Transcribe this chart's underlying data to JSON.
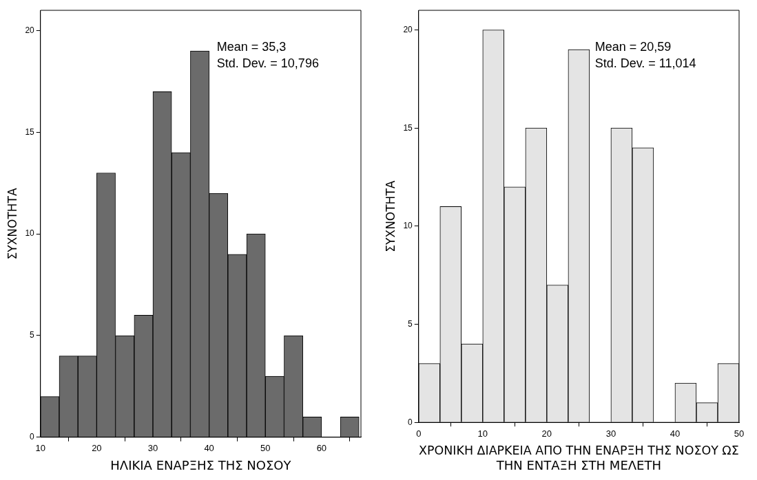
{
  "chart_data": [
    {
      "type": "histogram",
      "xlabel": "ΗΛΙΚΙΑ ΕΝΑΡΞΗΣ ΤΗΣ ΝΟΣΟΥ",
      "ylabel": "ΣΥΧΝΟΤΗΤΑ",
      "bins": [
        10,
        13.33,
        16.67,
        20,
        23.33,
        26.67,
        30,
        33.33,
        36.67,
        40,
        43.33,
        46.67,
        50,
        53.33,
        56.67,
        60,
        63.33,
        66.67
      ],
      "values": [
        2,
        4,
        4,
        13,
        5,
        6,
        17,
        14,
        19,
        12,
        9,
        10,
        3,
        5,
        1,
        0,
        1
      ],
      "color": "#6b6b6b",
      "xlim": [
        10,
        67
      ],
      "xticks": [
        10,
        20,
        30,
        40,
        50,
        60
      ],
      "ylim": [
        0,
        21
      ],
      "yticks": [
        0,
        5,
        10,
        15,
        20
      ],
      "annotations": [
        "Mean = 35,3",
        "Std. Dev. = 10,796"
      ],
      "grid": false,
      "legend": false
    },
    {
      "type": "histogram",
      "xlabel": "ΧΡΟΝΙΚΗ ΔΙΑΡΚΕΙΑ ΑΠΟ ΤΗΝ ΕΝΑΡΞΗ ΤΗΣ ΝΟΣΟΥ ΩΣ ΤΗΝ ΕΝΤΑΞΗ ΣΤΗ ΜΕΛΕΤΗ",
      "ylabel": "ΣΥΧΝΟΤΗΤΑ",
      "bins": [
        0,
        3.33,
        6.67,
        10,
        13.33,
        16.67,
        20,
        23.33,
        26.67,
        30,
        33.33,
        36.67,
        40,
        43.33,
        46.67,
        50
      ],
      "values": [
        3,
        11,
        4,
        20,
        12,
        15,
        7,
        19,
        0,
        15,
        14,
        0,
        2,
        1,
        3
      ],
      "color": "#e4e4e4",
      "xlim": [
        0,
        50
      ],
      "xticks": [
        0,
        10,
        20,
        30,
        40,
        50
      ],
      "ylim": [
        0,
        21
      ],
      "yticks": [
        0,
        5,
        10,
        15,
        20
      ],
      "annotations": [
        "Mean = 20,59",
        "Std. Dev. = 11,014"
      ],
      "grid": false,
      "legend": false
    }
  ]
}
